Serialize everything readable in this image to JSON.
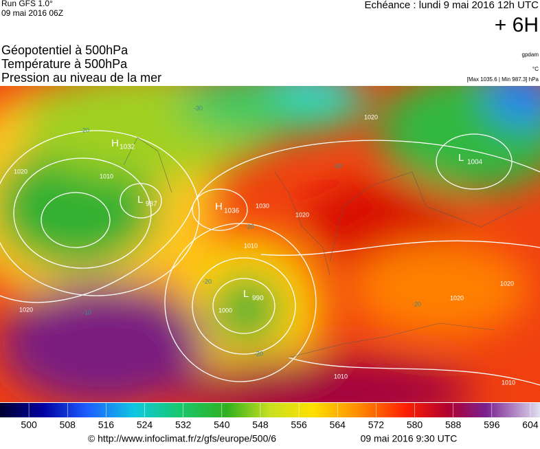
{
  "header": {
    "run": "Run GFS 1.0°",
    "date": "09 mai 2016 06Z",
    "echeance": "Echéance : lundi 9 mai 2016 12h UTC",
    "offset": "+ 6H",
    "titles": [
      "Géopotentiel à 500hPa",
      "Température à 500hPa",
      "Pression au niveau de la mer"
    ],
    "units": [
      "gpdam",
      "°C",
      "[Max 1035.6 | Min 987.3] hPa"
    ]
  },
  "map": {
    "centers": [
      {
        "letter": "H",
        "value": "1032"
      },
      {
        "letter": "L",
        "value": "987"
      },
      {
        "letter": "H",
        "value": "1036"
      },
      {
        "letter": "L",
        "value": "990"
      },
      {
        "letter": "L",
        "value": "1004"
      }
    ],
    "isobar_labels": [
      "1020",
      "1010",
      "1000",
      "1020",
      "1030",
      "1020",
      "1010",
      "1020",
      "1010",
      "1010",
      "1020",
      "1020"
    ],
    "temp_labels": [
      "-20",
      "-30",
      "-20",
      "-20",
      "-20",
      "-10",
      "-20",
      "-30"
    ]
  },
  "colorbar": {
    "lim": [
      494,
      606
    ],
    "ticks": [
      500,
      508,
      516,
      524,
      532,
      540,
      548,
      556,
      564,
      572,
      580,
      588,
      596,
      604
    ]
  },
  "footer": {
    "source": "© http://www.infoclimat.fr/z/gfs/europe/500/6",
    "issued": "09 mai 2016  9:30 UTC"
  }
}
